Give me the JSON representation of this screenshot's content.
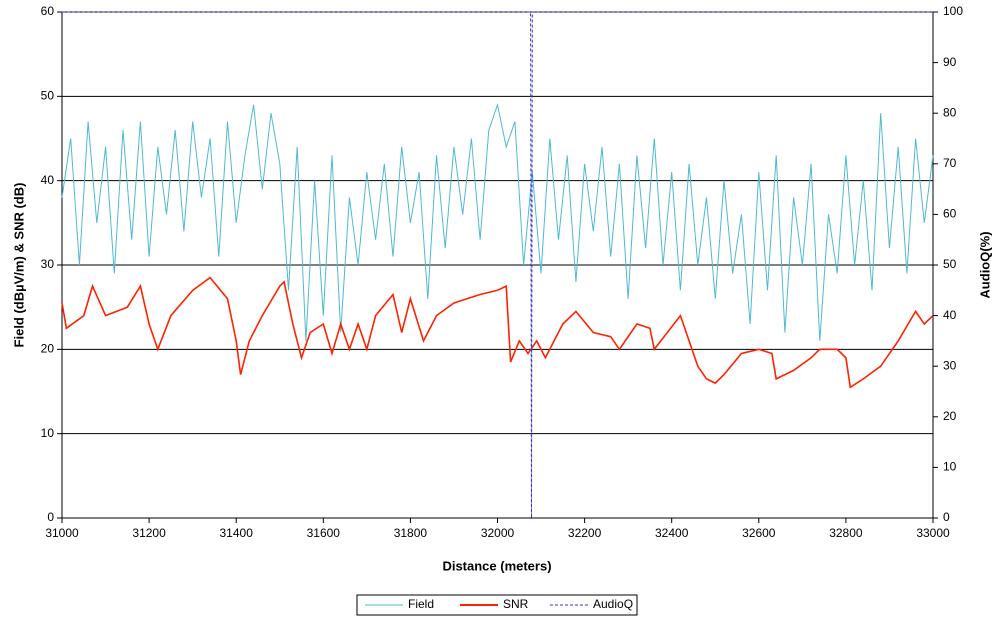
{
  "chart_data": {
    "type": "line",
    "xlabel": "Distance (meters)",
    "ylabel": "Field (dBµV/m) & SNR (dB)",
    "y2label": "AudioQ(%)",
    "xlim": [
      31000,
      33000
    ],
    "xticks": [
      31000,
      31200,
      31400,
      31600,
      31800,
      32000,
      32200,
      32400,
      32600,
      32800,
      33000
    ],
    "ylim": [
      0,
      60
    ],
    "yticks": [
      0,
      10,
      20,
      30,
      40,
      50,
      60
    ],
    "y2lim": [
      0,
      100
    ],
    "y2ticks": [
      0,
      10,
      20,
      30,
      40,
      50,
      60,
      70,
      80,
      90,
      100
    ],
    "grid": true,
    "legend": "bottom",
    "series": [
      {
        "name": "Field",
        "color": "#4fb9d3",
        "style": "solid",
        "x": [
          31000,
          31020,
          31040,
          31060,
          31080,
          31100,
          31120,
          31140,
          31160,
          31180,
          31200,
          31220,
          31240,
          31260,
          31280,
          31300,
          31320,
          31340,
          31360,
          31380,
          31400,
          31420,
          31440,
          31460,
          31480,
          31500,
          31520,
          31540,
          31560,
          31580,
          31600,
          31620,
          31640,
          31660,
          31680,
          31700,
          31720,
          31740,
          31760,
          31780,
          31800,
          31820,
          31840,
          31860,
          31880,
          31900,
          31920,
          31940,
          31960,
          31980,
          32000,
          32020,
          32040,
          32060,
          32080,
          32100,
          32120,
          32140,
          32160,
          32180,
          32200,
          32220,
          32240,
          32260,
          32280,
          32300,
          32320,
          32340,
          32360,
          32380,
          32400,
          32420,
          32440,
          32460,
          32480,
          32500,
          32520,
          32540,
          32560,
          32580,
          32600,
          32620,
          32640,
          32660,
          32680,
          32700,
          32720,
          32740,
          32760,
          32780,
          32800,
          32820,
          32840,
          32860,
          32880,
          32900,
          32920,
          32940,
          32960,
          32980,
          33000
        ],
        "values": [
          38,
          45,
          30,
          47,
          35,
          44,
          29,
          46,
          33,
          47,
          31,
          44,
          36,
          46,
          34,
          47,
          38,
          45,
          31,
          47,
          35,
          43,
          49,
          39,
          48,
          42,
          27,
          44,
          21,
          40,
          24,
          43,
          22,
          38,
          30,
          41,
          33,
          42,
          31,
          44,
          35,
          41,
          26,
          43,
          32,
          44,
          36,
          45,
          33,
          46,
          49,
          44,
          47,
          30,
          41,
          29,
          45,
          33,
          43,
          28,
          42,
          34,
          44,
          31,
          42,
          26,
          43,
          32,
          45,
          30,
          41,
          27,
          42,
          30,
          38,
          26,
          40,
          29,
          36,
          23,
          41,
          27,
          43,
          22,
          38,
          30,
          42,
          21,
          36,
          29,
          43,
          30,
          40,
          27,
          48,
          32,
          44,
          29,
          45,
          35,
          43
        ]
      },
      {
        "name": "SNR",
        "color": "#ff2200",
        "style": "solid",
        "x": [
          31000,
          31010,
          31050,
          31070,
          31100,
          31150,
          31180,
          31200,
          31220,
          31250,
          31300,
          31340,
          31380,
          31400,
          31410,
          31430,
          31460,
          31500,
          31510,
          31530,
          31550,
          31570,
          31600,
          31620,
          31640,
          31660,
          31680,
          31700,
          31720,
          31760,
          31780,
          31800,
          31830,
          31860,
          31900,
          31960,
          32000,
          32020,
          32030,
          32050,
          32070,
          32090,
          32110,
          32150,
          32180,
          32220,
          32260,
          32280,
          32320,
          32350,
          32360,
          32420,
          32440,
          32460,
          32480,
          32500,
          32520,
          32560,
          32600,
          32630,
          32640,
          32680,
          32720,
          32740,
          32780,
          32800,
          32810,
          32840,
          32880,
          32920,
          32960,
          32980,
          33000
        ],
        "values": [
          25.5,
          22.5,
          24,
          27.5,
          24,
          25,
          27.5,
          23,
          20,
          24,
          27,
          28.5,
          26,
          21,
          17,
          21,
          24,
          27.5,
          28,
          23,
          19,
          22,
          23,
          19.5,
          23,
          20,
          23,
          20,
          24,
          26.5,
          22,
          26,
          21,
          24,
          25.5,
          26.5,
          27,
          27.5,
          18.5,
          21,
          19.5,
          21,
          19,
          23,
          24.5,
          22,
          21.5,
          20,
          23,
          22.5,
          20,
          24,
          21,
          18,
          16.5,
          16,
          17,
          19.5,
          20,
          19.5,
          16.5,
          17.5,
          19,
          20,
          20,
          19,
          15.5,
          16.5,
          18,
          21,
          24.5,
          23,
          24
        ]
      },
      {
        "name": "AudioQ",
        "color": "#3333cc",
        "style": "dashed",
        "axis": "y2",
        "x": [
          31000,
          32076,
          32078,
          32080,
          33000
        ],
        "values": [
          100,
          100,
          0,
          100,
          100
        ]
      }
    ]
  }
}
